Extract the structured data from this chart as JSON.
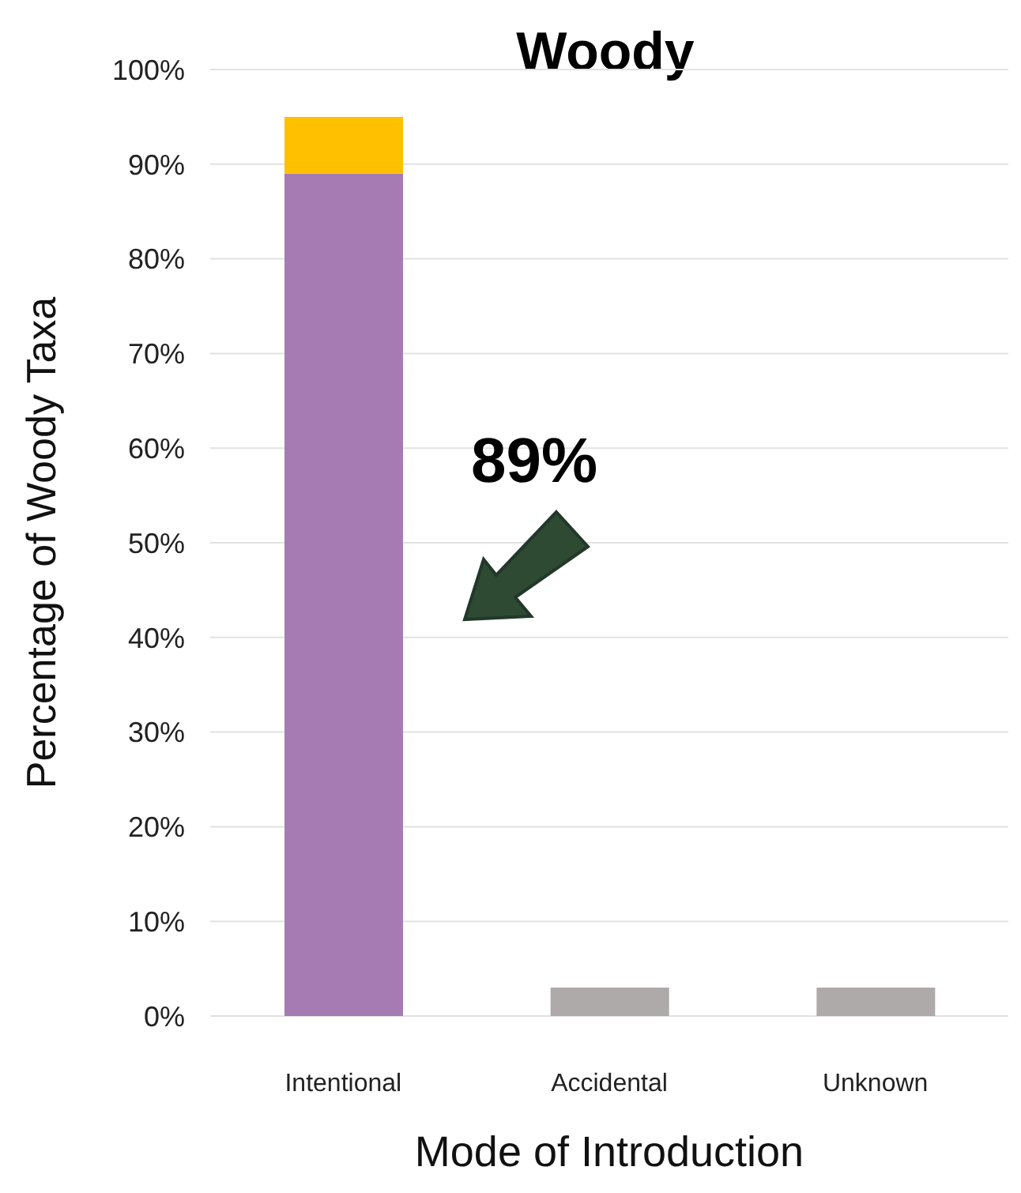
{
  "chart_data": {
    "type": "bar",
    "title": "Woody",
    "xlabel": "Mode of Introduction",
    "ylabel": "Percentage of Woody Taxa",
    "categories": [
      "Intentional",
      "Accidental",
      "Unknown"
    ],
    "series": [
      {
        "color": "#a67bb4",
        "values": [
          89,
          null,
          null
        ]
      },
      {
        "color": "#ffc000",
        "values": [
          6,
          null,
          null
        ]
      },
      {
        "color": "#aeaaa9",
        "values": [
          null,
          3,
          3
        ]
      }
    ],
    "stacked": true,
    "ylim": [
      0,
      100
    ],
    "yticks": [
      {
        "value": 0,
        "label": "0%"
      },
      {
        "value": 10,
        "label": "10%"
      },
      {
        "value": 20,
        "label": "20%"
      },
      {
        "value": 30,
        "label": "30%"
      },
      {
        "value": 40,
        "label": "40%"
      },
      {
        "value": 50,
        "label": "50%"
      },
      {
        "value": 60,
        "label": "60%"
      },
      {
        "value": 70,
        "label": "70%"
      },
      {
        "value": 80,
        "label": "80%"
      },
      {
        "value": 90,
        "label": "90%"
      },
      {
        "value": 100,
        "label": "100%"
      }
    ],
    "grid": "y",
    "annotations": [
      "89%"
    ]
  }
}
